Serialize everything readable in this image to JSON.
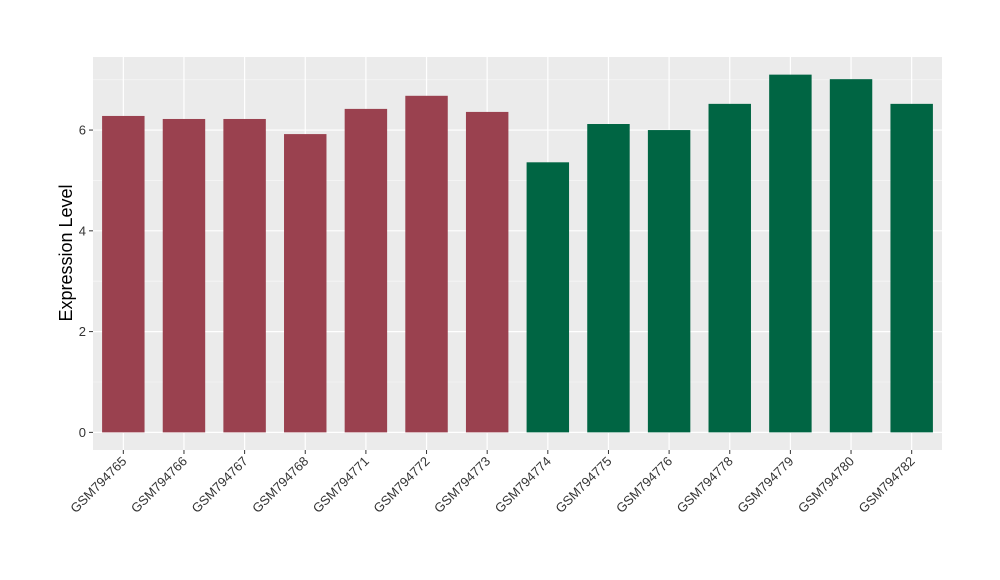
{
  "chart_data": {
    "type": "bar",
    "title": "",
    "xlabel": "",
    "ylabel": "Expression Level",
    "ylim": [
      -0.35,
      7.45
    ],
    "yticks": [
      0,
      2,
      4,
      6
    ],
    "grid": true,
    "legend": "none",
    "categories": [
      "GSM794765",
      "GSM794766",
      "GSM794767",
      "GSM794768",
      "GSM794771",
      "GSM794772",
      "GSM794773",
      "GSM794774",
      "GSM794775",
      "GSM794776",
      "GSM794778",
      "GSM794779",
      "GSM794780",
      "GSM794782"
    ],
    "values": [
      6.28,
      6.22,
      6.22,
      5.92,
      6.42,
      6.68,
      6.36,
      5.36,
      6.12,
      6.0,
      6.52,
      7.1,
      7.01,
      6.52
    ],
    "groups": [
      1,
      1,
      1,
      1,
      1,
      1,
      1,
      2,
      2,
      2,
      2,
      2,
      2,
      2
    ],
    "colors": {
      "group1": "#9a414f",
      "group2": "#006543",
      "panel": "#ebebeb",
      "grid_major": "#ffffff",
      "grid_minor": "#f5f5f5",
      "text": "#333333",
      "tick": "#333333"
    }
  }
}
